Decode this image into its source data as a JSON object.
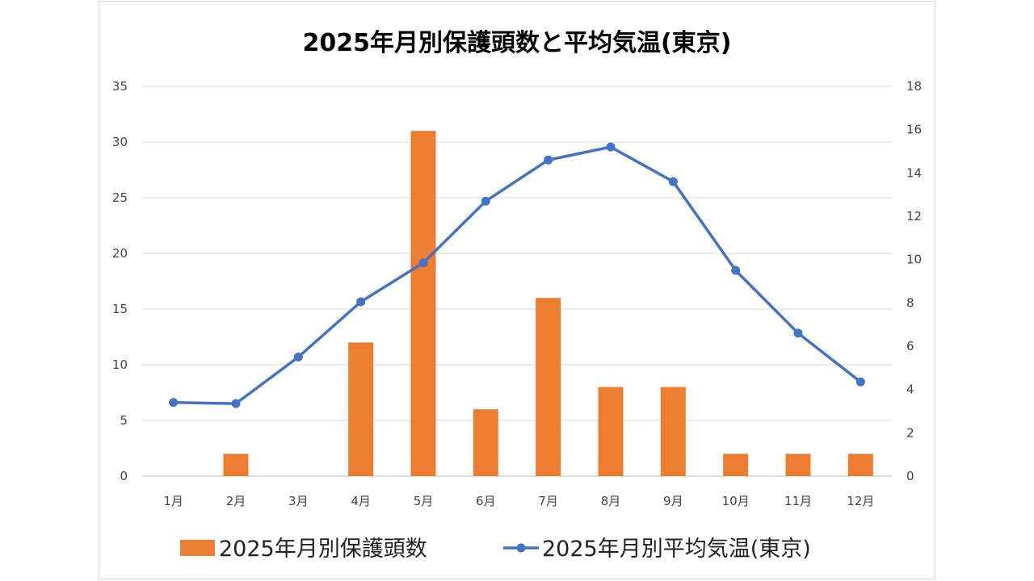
{
  "chart_data": {
    "type": "bar",
    "title": "2025年月別保護頭数と平均気温(東京)",
    "categories": [
      "1月",
      "2月",
      "3月",
      "4月",
      "5月",
      "6月",
      "7月",
      "8月",
      "9月",
      "10月",
      "11月",
      "12月"
    ],
    "series": [
      {
        "name": "2025年月別保護頭数",
        "type": "bar",
        "axis": "left",
        "color": "#ED7D31",
        "values": [
          0,
          2,
          0,
          12,
          31,
          6,
          16,
          8,
          8,
          2,
          2,
          2
        ]
      },
      {
        "name": "2025年月別平均気温(東京)",
        "type": "line",
        "axis": "right",
        "color": "#4472C4",
        "values": [
          3.4,
          3.35,
          5.5,
          8.05,
          9.85,
          12.7,
          14.6,
          15.2,
          13.6,
          9.5,
          6.6,
          4.35
        ]
      }
    ],
    "y_left": {
      "ylim": [
        0,
        35
      ],
      "ticks": [
        "0",
        "5",
        "10",
        "15",
        "20",
        "25",
        "30",
        "35"
      ]
    },
    "y_right": {
      "ylim": [
        0,
        18
      ],
      "ticks": [
        "0",
        "2",
        "4",
        "6",
        "8",
        "10",
        "12",
        "14",
        "16",
        "18"
      ]
    },
    "grid": true,
    "legend_position": "bottom"
  }
}
